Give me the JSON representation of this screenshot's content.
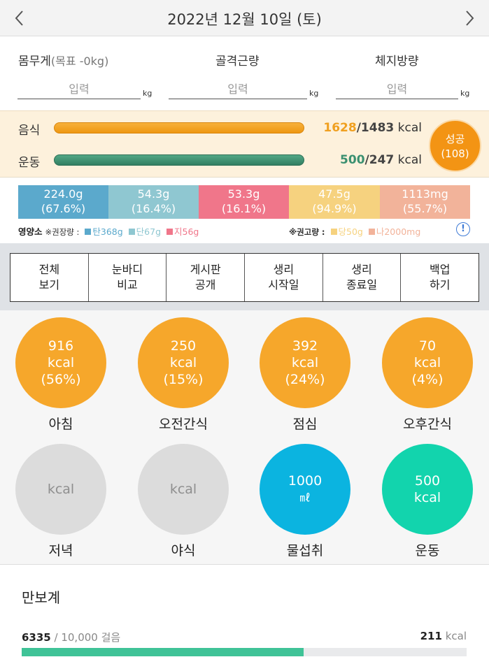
{
  "header": {
    "date": "2022년 12월 10일 (토)",
    "prev_icon": "chevron-left-icon",
    "next_icon": "chevron-right-icon"
  },
  "body": {
    "weight_label": "몸무게",
    "weight_goal": "(목표 -0kg)",
    "muscle_label": "골격근량",
    "fat_label": "체지방량",
    "placeholder": "입력",
    "unit": "kg"
  },
  "calories": {
    "food_label": "음식",
    "food_value": "1628",
    "food_target": "/1483",
    "food_unit": "kcal",
    "exercise_label": "운동",
    "exercise_value": "500",
    "exercise_target": "/247",
    "exercise_unit": "kcal",
    "success_label": "성공",
    "success_count": "(108)",
    "colors": {
      "food": "#f0a020",
      "exercise": "#3a9070",
      "success": "#f39414"
    }
  },
  "nutrition": {
    "boxes": [
      {
        "amount": "224.0g",
        "pct": "(67.6%)",
        "color": "#5ba9cc"
      },
      {
        "amount": "54.3g",
        "pct": "(16.4%)",
        "color": "#8fc7d1"
      },
      {
        "amount": "53.3g",
        "pct": "(16.1%)",
        "color": "#f0768a"
      },
      {
        "amount": "47.5g",
        "pct": "(94.9%)",
        "color": "#f6d27f"
      },
      {
        "amount": "1113mg",
        "pct": "(55.7%)",
        "color": "#f2b39a"
      }
    ],
    "legend_left_title": "영양소",
    "legend_left_note": "※권장량 :",
    "legend_left_items": [
      "탄368g",
      "단67g",
      "지56g"
    ],
    "legend_right_note": "※권고량 :",
    "legend_right_items": [
      "당50g",
      "나2000mg"
    ],
    "info_icon": "!"
  },
  "buttons": [
    {
      "label": "전체\n보기"
    },
    {
      "label": "눈바디\n비교"
    },
    {
      "label": "게시판\n공개"
    },
    {
      "label": "생리\n시작일"
    },
    {
      "label": "생리\n종료일"
    },
    {
      "label": "백업\n하기"
    }
  ],
  "meals": [
    {
      "name": "아침",
      "line1": "916",
      "line2": "kcal",
      "line3": "(56%)",
      "style": "orange"
    },
    {
      "name": "오전간식",
      "line1": "250",
      "line2": "kcal",
      "line3": "(15%)",
      "style": "orange"
    },
    {
      "name": "점심",
      "line1": "392",
      "line2": "kcal",
      "line3": "(24%)",
      "style": "orange"
    },
    {
      "name": "오후간식",
      "line1": "70",
      "line2": "kcal",
      "line3": "(4%)",
      "style": "orange"
    },
    {
      "name": "저녁",
      "line1": "",
      "line2": "kcal",
      "line3": "",
      "style": "gray"
    },
    {
      "name": "야식",
      "line1": "",
      "line2": "kcal",
      "line3": "",
      "style": "gray"
    },
    {
      "name": "물섭취",
      "line1": "1000",
      "line2": "㎖",
      "line3": "",
      "style": "blue"
    },
    {
      "name": "운동",
      "line1": "500",
      "line2": "kcal",
      "line3": "",
      "style": "teal"
    }
  ],
  "pedometer": {
    "title": "만보계",
    "steps": "6335",
    "goal": " / 10,000 걸음",
    "kcal": "211",
    "kcal_unit": " kcal",
    "progress": 0.6335
  }
}
